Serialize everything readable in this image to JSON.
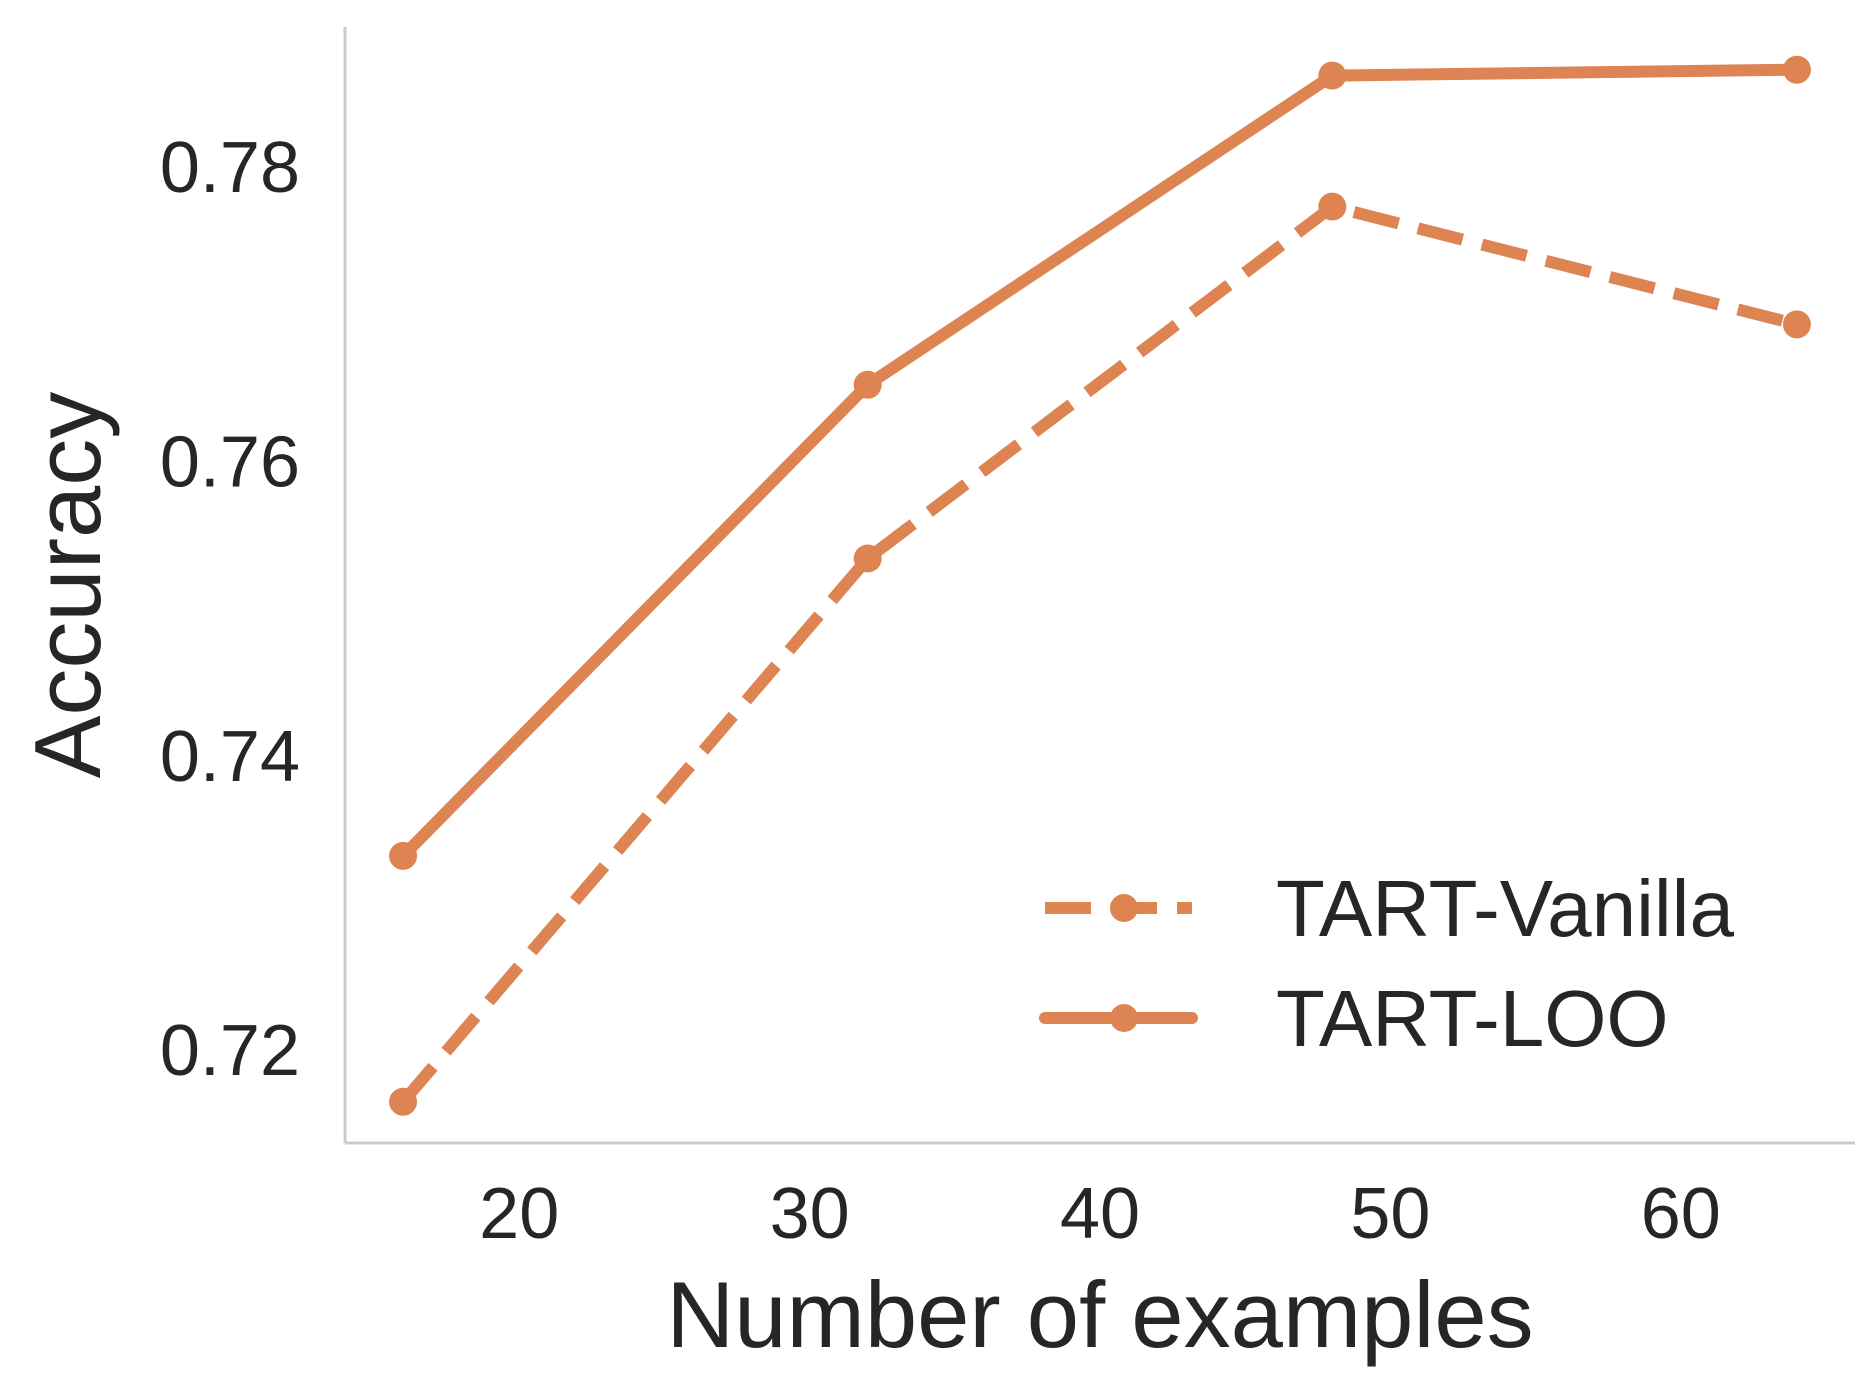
{
  "chart_data": {
    "type": "line",
    "title": "",
    "xlabel": "Number of examples",
    "ylabel": "Accuracy",
    "xlim": [
      14,
      66
    ],
    "ylim": [
      0.7137,
      0.7895
    ],
    "xticks": [
      20,
      30,
      40,
      50,
      60
    ],
    "yticks": [
      0.72,
      0.74,
      0.76,
      0.78
    ],
    "ytick_labels": [
      "0.72",
      "0.74",
      "0.76",
      "0.78"
    ],
    "grid": false,
    "legend_position": "lower-right",
    "series": [
      {
        "name": "TART-Vanilla",
        "line_style": "dashed",
        "marker": "circle",
        "color": "#DD8452",
        "x": [
          16,
          32,
          48,
          64
        ],
        "y": [
          0.7165,
          0.7534,
          0.7773,
          0.7693
        ]
      },
      {
        "name": "TART-LOO",
        "line_style": "solid",
        "marker": "circle",
        "color": "#DD8452",
        "x": [
          16,
          32,
          48,
          64
        ],
        "y": [
          0.7332,
          0.7652,
          0.7862,
          0.7866
        ]
      }
    ]
  }
}
